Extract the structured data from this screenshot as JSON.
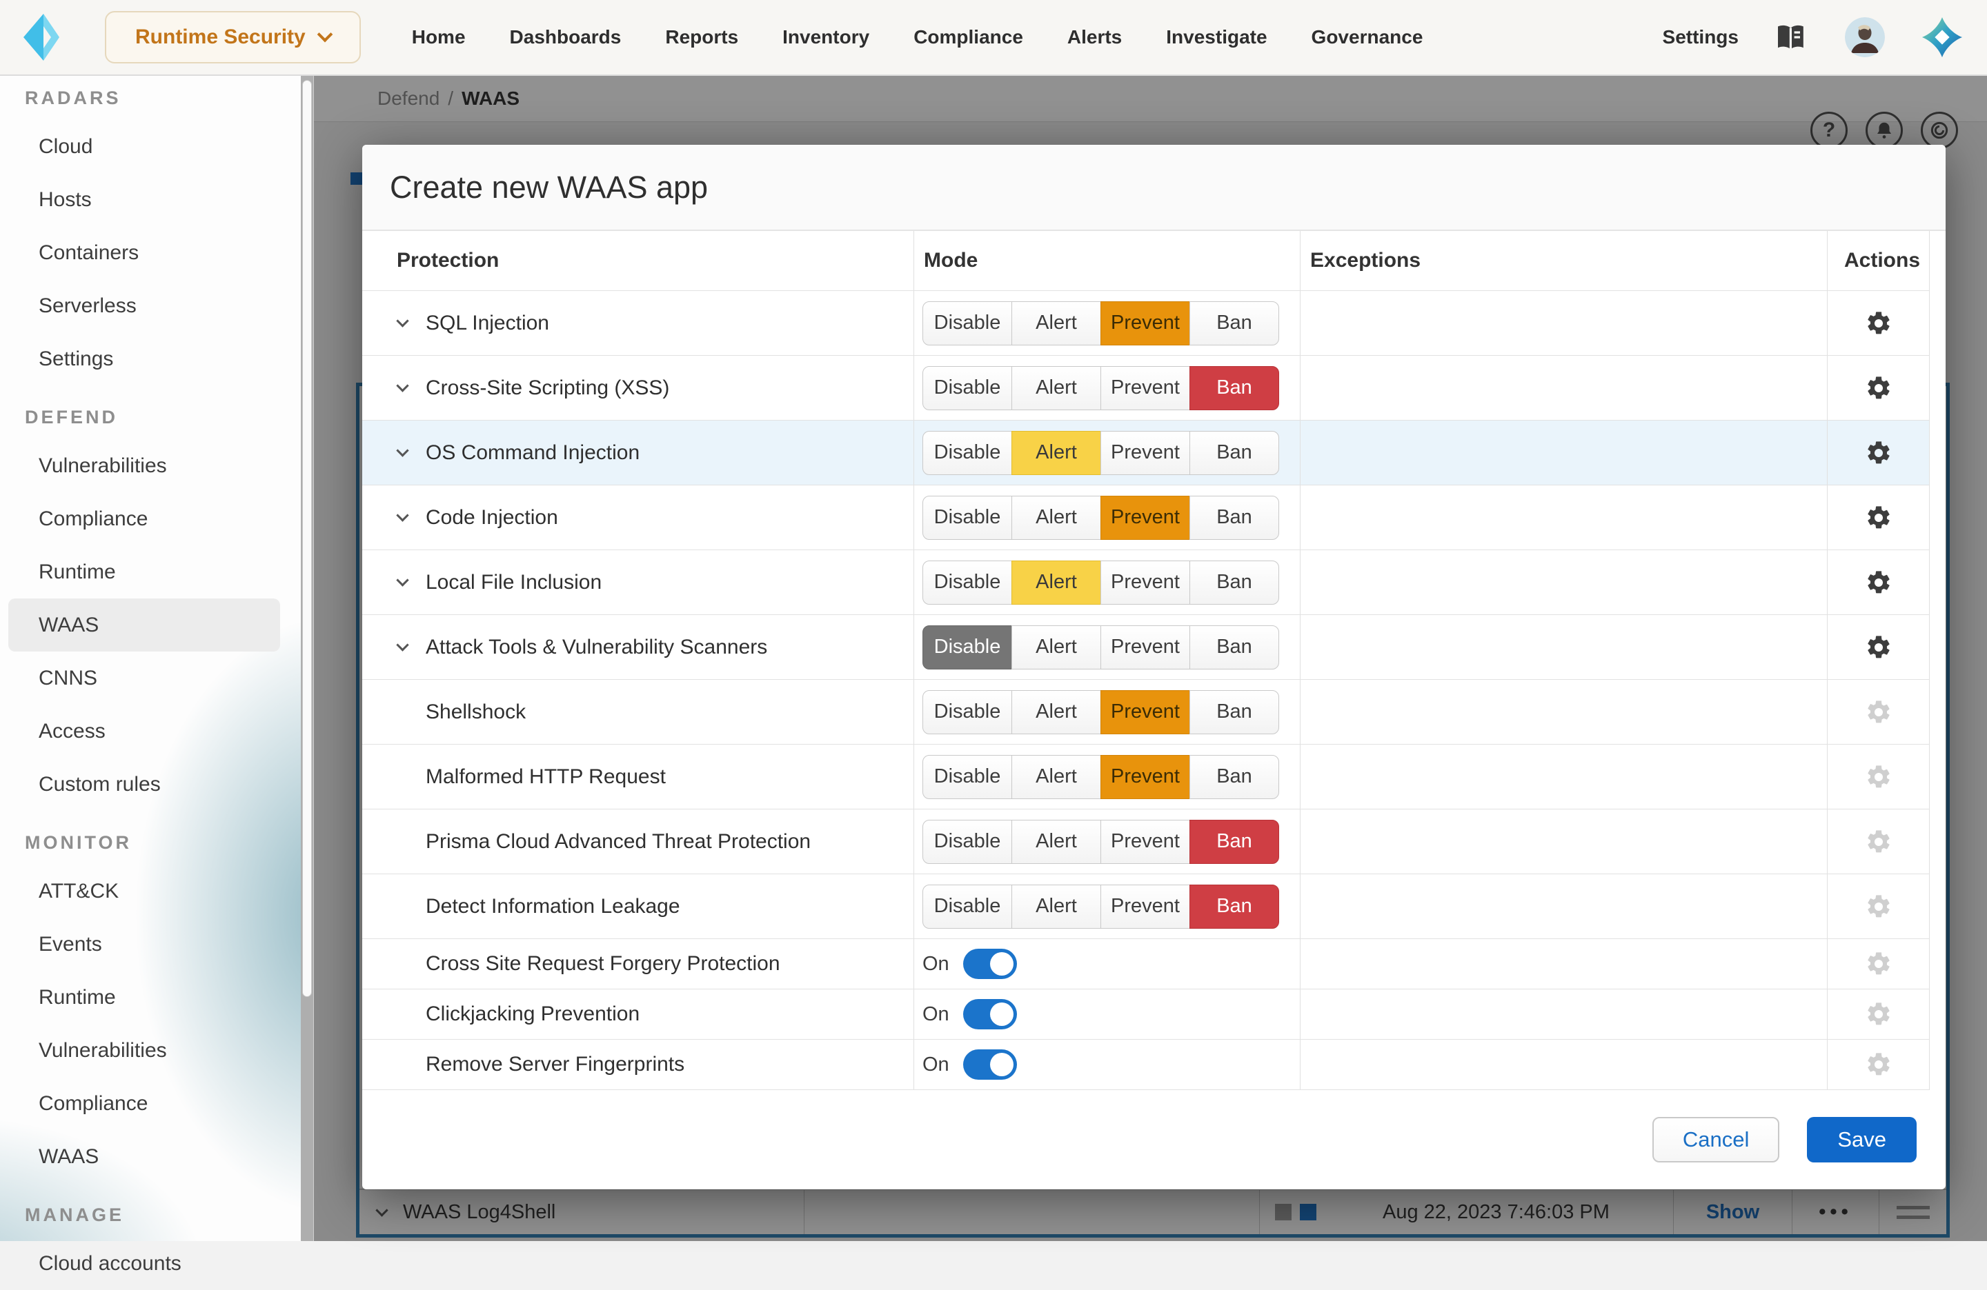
{
  "header": {
    "product_switcher_label": "Runtime Security",
    "nav": [
      "Home",
      "Dashboards",
      "Reports",
      "Inventory",
      "Compliance",
      "Alerts",
      "Investigate",
      "Governance"
    ],
    "settings_label": "Settings"
  },
  "sidebar": {
    "sections": [
      {
        "title": "RADARS",
        "items": [
          "Cloud",
          "Hosts",
          "Containers",
          "Serverless",
          "Settings"
        ]
      },
      {
        "title": "DEFEND",
        "items": [
          "Vulnerabilities",
          "Compliance",
          "Runtime",
          "WAAS",
          "CNNS",
          "Access",
          "Custom rules"
        ],
        "selected": "WAAS"
      },
      {
        "title": "MONITOR",
        "items": [
          "ATT&CK",
          "Events",
          "Runtime",
          "Vulnerabilities",
          "Compliance",
          "WAAS"
        ]
      },
      {
        "title": "MANAGE",
        "items": [
          "Cloud accounts"
        ]
      }
    ]
  },
  "background": {
    "breadcrumb": {
      "parent": "Defend",
      "separator": "/",
      "current": "WAAS"
    },
    "help_glyph": "?",
    "row": {
      "name": "WAAS Log4Shell",
      "timestamp": "Aug 22, 2023 7:46:03 PM",
      "show_label": "Show",
      "dots": "•••"
    }
  },
  "modal": {
    "title": "Create new WAAS app",
    "columns": [
      "Protection",
      "Mode",
      "Exceptions",
      "Actions"
    ],
    "mode_options": [
      "Disable",
      "Alert",
      "Prevent",
      "Ban"
    ],
    "rows": [
      {
        "label": "SQL Injection",
        "expandable": true,
        "mode": "Prevent",
        "highlighted": false,
        "gear": "dark"
      },
      {
        "label": "Cross-Site Scripting (XSS)",
        "expandable": true,
        "mode": "Ban",
        "highlighted": false,
        "gear": "dark"
      },
      {
        "label": "OS Command Injection",
        "expandable": true,
        "mode": "Alert",
        "highlighted": true,
        "gear": "dark"
      },
      {
        "label": "Code Injection",
        "expandable": true,
        "mode": "Prevent",
        "highlighted": false,
        "gear": "dark"
      },
      {
        "label": "Local File Inclusion",
        "expandable": true,
        "mode": "Alert",
        "highlighted": false,
        "gear": "dark"
      },
      {
        "label": "Attack Tools & Vulnerability Scanners",
        "expandable": true,
        "mode": "Disable",
        "highlighted": false,
        "gear": "dark"
      },
      {
        "label": "Shellshock",
        "expandable": false,
        "mode": "Prevent",
        "highlighted": false,
        "gear": "light"
      },
      {
        "label": "Malformed HTTP Request",
        "expandable": false,
        "mode": "Prevent",
        "highlighted": false,
        "gear": "light"
      },
      {
        "label": "Prisma Cloud Advanced Threat Protection",
        "expandable": false,
        "mode": "Ban",
        "highlighted": false,
        "gear": "light"
      },
      {
        "label": "Detect Information Leakage",
        "expandable": false,
        "mode": "Ban",
        "highlighted": false,
        "gear": "light"
      }
    ],
    "toggle_rows": [
      {
        "label": "Cross Site Request Forgery Protection",
        "state_label": "On",
        "on": true
      },
      {
        "label": "Clickjacking Prevention",
        "state_label": "On",
        "on": true
      },
      {
        "label": "Remove Server Fingerprints",
        "state_label": "On",
        "on": true
      }
    ],
    "footer": {
      "cancel_label": "Cancel",
      "save_label": "Save"
    }
  },
  "colors": {
    "mode_disable": "#757575",
    "mode_alert": "#f8d247",
    "mode_prevent": "#e8930c",
    "mode_ban": "#cf3e44",
    "toggle_blue": "#1b74cb",
    "save_blue": "#1068c9",
    "link_blue": "#1a6fc5",
    "brand_orange": "#c2751a"
  }
}
